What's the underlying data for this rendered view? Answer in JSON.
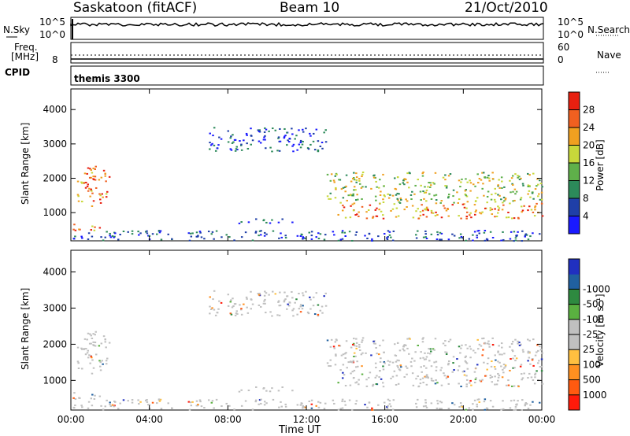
{
  "header": {
    "station": "Saskatoon (fitACF)",
    "beam": "Beam 10",
    "date": "21/Oct/2010"
  },
  "top_panel": {
    "left_label": "N.Sky",
    "right_label": "N.Search",
    "tick_hi": "10^5",
    "tick_lo": "10^0",
    "tick_hi_right": "10^5",
    "tick_lo_right": "10^0"
  },
  "freq_panel": {
    "left_label_1": "Freq.",
    "left_label_2": "[MHz]",
    "left_tick": "8",
    "right_label": "Nave",
    "right_tick_hi": "60",
    "right_tick_lo": "0"
  },
  "cpid": {
    "label": "CPID",
    "value": "themis 3300"
  },
  "colors": {
    "power": [
      "#1a1aff",
      "#1f3fa8",
      "#2c8a5a",
      "#5fb04a",
      "#c8d83a",
      "#f0a020",
      "#f06020",
      "#e82010"
    ],
    "velocity": [
      "#ff1a0a",
      "#ff5a10",
      "#ff9020",
      "#ffc040",
      "#c0c0c0",
      "#c0c0c0",
      "#5ab040",
      "#2e8a40",
      "#2060a0",
      "#2030c0"
    ]
  },
  "chart_data": [
    {
      "type": "heatmap",
      "name": "power",
      "ylabel": "Slant Range [km]",
      "ylim": [
        180,
        4600
      ],
      "yticks": [
        "1000",
        "2000",
        "3000",
        "4000"
      ],
      "xlim": [
        "00:00",
        "24:00"
      ],
      "colorbar_label": "Power [dB]",
      "colorbar_ticks": [
        "4",
        "8",
        "12",
        "16",
        "20",
        "24",
        "28"
      ],
      "features": [
        {
          "t_start": 0.3,
          "t_end": 2.0,
          "r_low": 1200,
          "r_high": 2400,
          "level": "high"
        },
        {
          "t_start": 0.0,
          "t_end": 1.5,
          "r_low": 450,
          "r_high": 700,
          "level": "high"
        },
        {
          "t_start": 7.0,
          "t_end": 13.0,
          "r_low": 2800,
          "r_high": 3500,
          "level": "low"
        },
        {
          "t_start": 8.5,
          "t_end": 11.5,
          "r_low": 700,
          "r_high": 850,
          "level": "low"
        },
        {
          "t_start": 13.5,
          "t_end": 24.0,
          "r_low": 850,
          "r_high": 1300,
          "level": "high"
        },
        {
          "t_start": 13.0,
          "t_end": 24.0,
          "r_low": 1300,
          "r_high": 2200,
          "level": "medium"
        },
        {
          "t_start": 0.0,
          "t_end": 24.0,
          "r_low": 200,
          "r_high": 500,
          "level": "low"
        }
      ]
    },
    {
      "type": "heatmap",
      "name": "velocity",
      "ylabel": "Slant Range [km]",
      "ylim": [
        180,
        4600
      ],
      "yticks": [
        "1000",
        "2000",
        "3000",
        "4000"
      ],
      "xlim": [
        "00:00",
        "24:00"
      ],
      "xticks": [
        "00:00",
        "04:00",
        "08:00",
        "12:00",
        "16:00",
        "20:00",
        "00:00"
      ],
      "xlabel": "Time UT",
      "colorbar_label": "Velocity [m s⁻¹]",
      "colorbar_ticks": [
        "1000",
        "500",
        "100",
        "25",
        "-25",
        "-100",
        "-500",
        "-1000"
      ]
    }
  ]
}
